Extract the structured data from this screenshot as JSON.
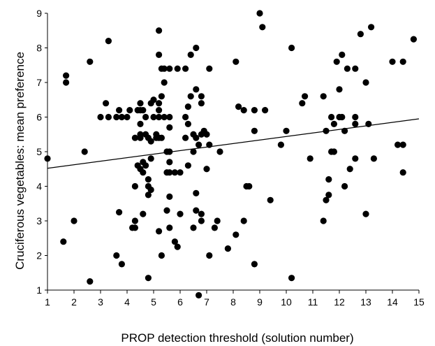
{
  "chart_data": {
    "type": "scatter",
    "title": "",
    "xlabel": "PROP detection threshold (solution number)",
    "ylabel": "Cruciferous vegetables: mean preference",
    "xlim": [
      1,
      15
    ],
    "ylim": [
      1,
      9
    ],
    "x_ticks": [
      "1",
      "2",
      "3",
      "4",
      "5",
      "6",
      "7",
      "8",
      "9",
      "10",
      "11",
      "12",
      "13",
      "14",
      "15"
    ],
    "y_ticks": [
      "1",
      "2",
      "3",
      "4",
      "5",
      "6",
      "7",
      "8",
      "9"
    ],
    "grid": false,
    "legend": "none",
    "marker_color": "#000000",
    "series": [
      {
        "points": [
          [
            1.0,
            4.8
          ],
          [
            1.6,
            2.4
          ],
          [
            1.7,
            7.2
          ],
          [
            1.7,
            7.0
          ],
          [
            2.0,
            3.0
          ],
          [
            2.4,
            5.0
          ],
          [
            2.6,
            7.6
          ],
          [
            2.6,
            1.25
          ],
          [
            3.0,
            6.0
          ],
          [
            3.2,
            6.4
          ],
          [
            3.3,
            6.0
          ],
          [
            3.3,
            8.2
          ],
          [
            3.6,
            6.0
          ],
          [
            3.6,
            2.0
          ],
          [
            3.7,
            6.2
          ],
          [
            3.7,
            3.25
          ],
          [
            3.8,
            1.75
          ],
          [
            3.8,
            6.0
          ],
          [
            4.0,
            6.0
          ],
          [
            4.1,
            6.2
          ],
          [
            4.2,
            2.8
          ],
          [
            4.3,
            5.4
          ],
          [
            4.3,
            4.0
          ],
          [
            4.3,
            3.0
          ],
          [
            4.3,
            2.8
          ],
          [
            4.4,
            6.2
          ],
          [
            4.4,
            4.6
          ],
          [
            4.5,
            6.4
          ],
          [
            4.5,
            6.2
          ],
          [
            4.5,
            5.8
          ],
          [
            4.5,
            5.5
          ],
          [
            4.5,
            5.4
          ],
          [
            4.5,
            4.5
          ],
          [
            4.6,
            6.2
          ],
          [
            4.6,
            4.7
          ],
          [
            4.6,
            4.4
          ],
          [
            4.6,
            3.2
          ],
          [
            4.7,
            6.0
          ],
          [
            4.7,
            5.5
          ],
          [
            4.7,
            4.6
          ],
          [
            4.8,
            5.4
          ],
          [
            4.8,
            4.2
          ],
          [
            4.8,
            4.0
          ],
          [
            4.8,
            3.75
          ],
          [
            4.8,
            1.35
          ],
          [
            4.9,
            6.4
          ],
          [
            4.9,
            5.3
          ],
          [
            4.9,
            4.8
          ],
          [
            4.9,
            3.9
          ],
          [
            5.0,
            6.5
          ],
          [
            5.0,
            6.0
          ],
          [
            5.1,
            5.5
          ],
          [
            5.1,
            5.4
          ],
          [
            5.2,
            6.4
          ],
          [
            5.2,
            6.2
          ],
          [
            5.2,
            6.0
          ],
          [
            5.2,
            5.4
          ],
          [
            5.2,
            2.7
          ],
          [
            5.2,
            8.5
          ],
          [
            5.2,
            7.8
          ],
          [
            5.3,
            7.4
          ],
          [
            5.3,
            6.6
          ],
          [
            5.3,
            5.4
          ],
          [
            5.3,
            2.0
          ],
          [
            5.4,
            7.4
          ],
          [
            5.4,
            7.0
          ],
          [
            5.4,
            6.0
          ],
          [
            5.5,
            5.0
          ],
          [
            5.5,
            4.4
          ],
          [
            5.5,
            3.3
          ],
          [
            5.6,
            7.4
          ],
          [
            5.6,
            6.0
          ],
          [
            5.6,
            5.7
          ],
          [
            5.6,
            5.0
          ],
          [
            5.6,
            4.7
          ],
          [
            5.6,
            4.4
          ],
          [
            5.6,
            3.7
          ],
          [
            5.6,
            2.8
          ],
          [
            5.8,
            4.4
          ],
          [
            5.8,
            2.4
          ],
          [
            5.9,
            7.4
          ],
          [
            5.9,
            2.25
          ],
          [
            6.0,
            4.4
          ],
          [
            6.0,
            3.2
          ],
          [
            6.2,
            7.4
          ],
          [
            6.2,
            6.0
          ],
          [
            6.2,
            5.4
          ],
          [
            6.3,
            6.3
          ],
          [
            6.3,
            5.8
          ],
          [
            6.3,
            4.6
          ],
          [
            6.4,
            7.8
          ],
          [
            6.4,
            6.6
          ],
          [
            6.5,
            5.5
          ],
          [
            6.5,
            5.0
          ],
          [
            6.5,
            2.8
          ],
          [
            6.6,
            8.0
          ],
          [
            6.6,
            6.8
          ],
          [
            6.6,
            5.4
          ],
          [
            6.6,
            3.8
          ],
          [
            6.6,
            3.3
          ],
          [
            6.7,
            5.2
          ],
          [
            6.7,
            0.85
          ],
          [
            6.8,
            5.5
          ],
          [
            6.8,
            3.2
          ],
          [
            6.8,
            3.0
          ],
          [
            6.8,
            6.6
          ],
          [
            6.8,
            6.4
          ],
          [
            6.9,
            5.6
          ],
          [
            7.0,
            5.5
          ],
          [
            7.0,
            4.5
          ],
          [
            7.1,
            7.4
          ],
          [
            7.1,
            5.2
          ],
          [
            7.1,
            2.0
          ],
          [
            7.3,
            2.8
          ],
          [
            7.4,
            3.0
          ],
          [
            7.5,
            5.0
          ],
          [
            7.8,
            2.2
          ],
          [
            8.1,
            2.6
          ],
          [
            8.1,
            7.6
          ],
          [
            8.2,
            6.3
          ],
          [
            8.4,
            6.2
          ],
          [
            8.4,
            3.0
          ],
          [
            8.5,
            4.0
          ],
          [
            8.6,
            4.0
          ],
          [
            8.8,
            6.2
          ],
          [
            8.8,
            5.6
          ],
          [
            8.8,
            1.75
          ],
          [
            9.0,
            9.0
          ],
          [
            9.1,
            8.6
          ],
          [
            9.2,
            6.2
          ],
          [
            9.4,
            3.6
          ],
          [
            9.8,
            5.2
          ],
          [
            10.0,
            5.6
          ],
          [
            10.2,
            8.0
          ],
          [
            10.2,
            1.35
          ],
          [
            10.6,
            6.4
          ],
          [
            10.7,
            6.6
          ],
          [
            10.9,
            4.8
          ],
          [
            11.4,
            6.6
          ],
          [
            11.4,
            3.0
          ],
          [
            11.5,
            5.6
          ],
          [
            11.5,
            3.6
          ],
          [
            11.6,
            4.2
          ],
          [
            11.6,
            3.75
          ],
          [
            11.7,
            5.0
          ],
          [
            11.7,
            6.0
          ],
          [
            11.8,
            5.8
          ],
          [
            11.8,
            5.0
          ],
          [
            11.9,
            7.6
          ],
          [
            12.0,
            6.8
          ],
          [
            12.0,
            6.0
          ],
          [
            12.1,
            7.8
          ],
          [
            12.1,
            6.0
          ],
          [
            12.2,
            5.6
          ],
          [
            12.2,
            4.0
          ],
          [
            12.3,
            7.4
          ],
          [
            12.4,
            4.5
          ],
          [
            12.6,
            7.4
          ],
          [
            12.6,
            6.0
          ],
          [
            12.6,
            5.8
          ],
          [
            12.6,
            4.8
          ],
          [
            12.8,
            8.4
          ],
          [
            13.0,
            7.0
          ],
          [
            13.0,
            3.2
          ],
          [
            13.1,
            5.8
          ],
          [
            13.2,
            8.6
          ],
          [
            13.3,
            4.8
          ],
          [
            14.0,
            7.6
          ],
          [
            14.2,
            5.2
          ],
          [
            14.4,
            5.2
          ],
          [
            14.4,
            7.6
          ],
          [
            14.4,
            4.4
          ],
          [
            14.8,
            8.25
          ]
        ]
      }
    ],
    "regression_line": {
      "x": [
        1,
        15
      ],
      "y": [
        4.52,
        5.95
      ]
    }
  }
}
